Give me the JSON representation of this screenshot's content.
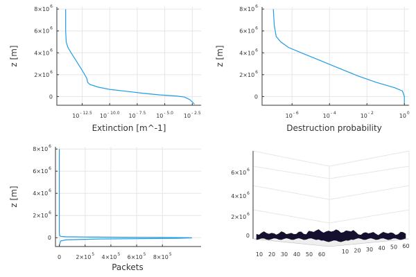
{
  "chart_data": [
    {
      "type": "line",
      "xlabel": "Extinction [m^-1]",
      "ylabel": "z [m]",
      "xscale": "log",
      "x_tick_labels": [
        {
          "base": "10",
          "exp": "- 12.5"
        },
        {
          "base": "10",
          "exp": "- 10.0"
        },
        {
          "base": "10",
          "exp": "- 7.5"
        },
        {
          "base": "10",
          "exp": "- 5.0"
        },
        {
          "base": "10",
          "exp": "- 2.5"
        }
      ],
      "y_tick_labels": [
        {
          "base": "0",
          "exp": ""
        },
        {
          "base": "2×10",
          "exp": "6"
        },
        {
          "base": "4×10",
          "exp": "6"
        },
        {
          "base": "6×10",
          "exp": "6"
        },
        {
          "base": "8×10",
          "exp": "6"
        }
      ],
      "ylim": [
        -800000,
        8200000
      ],
      "grid": true,
      "series": [
        {
          "color": "#1e9be6",
          "x_log10": [
            -14.0,
            -14.0,
            -13.95,
            -13.8,
            -13.5,
            -13.0,
            -12.5,
            -12.1,
            -12.0,
            -11.8,
            -11.0,
            -10.0,
            -8.5,
            -7.0,
            -5.5,
            -4.0,
            -3.2,
            -2.7,
            -2.3
          ],
          "y": [
            8000000,
            6000000,
            5000000,
            4500000,
            4000000,
            3200000,
            2400000,
            1700000,
            1300000,
            1100000,
            850000,
            650000,
            480000,
            300000,
            150000,
            50000,
            -50000,
            -300000,
            -700000
          ]
        }
      ]
    },
    {
      "type": "line",
      "xlabel": "Destruction probability",
      "ylabel": "z [m]",
      "xscale": "log",
      "x_tick_labels": [
        {
          "base": "10",
          "exp": "- 6"
        },
        {
          "base": "10",
          "exp": "- 4"
        },
        {
          "base": "10",
          "exp": "- 2"
        },
        {
          "base": "10",
          "exp": "0"
        }
      ],
      "y_tick_labels": [
        {
          "base": "0",
          "exp": ""
        },
        {
          "base": "2×10",
          "exp": "6"
        },
        {
          "base": "4×10",
          "exp": "6"
        },
        {
          "base": "6×10",
          "exp": "6"
        },
        {
          "base": "8×10",
          "exp": "6"
        }
      ],
      "ylim": [
        -800000,
        8200000
      ],
      "grid": true,
      "series": [
        {
          "color": "#1e9be6",
          "x_log10": [
            -7.0,
            -6.95,
            -6.85,
            -6.6,
            -6.2,
            -5.5,
            -4.5,
            -3.5,
            -2.5,
            -1.5,
            -0.5,
            -0.1,
            0.0,
            0.0
          ],
          "y": [
            8000000,
            6500000,
            5500000,
            5000000,
            4500000,
            4000000,
            3300000,
            2600000,
            1900000,
            1300000,
            800000,
            500000,
            0,
            -700000
          ]
        }
      ]
    },
    {
      "type": "line",
      "xlabel": "Packets",
      "ylabel": "z [m]",
      "x_tick_labels": [
        {
          "base": "0",
          "exp": ""
        },
        {
          "base": "2×10",
          "exp": "5"
        },
        {
          "base": "4×10",
          "exp": "5"
        },
        {
          "base": "6×10",
          "exp": "5"
        },
        {
          "base": "8×10",
          "exp": "5"
        }
      ],
      "y_tick_labels": [
        {
          "base": "0",
          "exp": ""
        },
        {
          "base": "2×10",
          "exp": "6"
        },
        {
          "base": "4×10",
          "exp": "6"
        },
        {
          "base": "6×10",
          "exp": "6"
        },
        {
          "base": "8×10",
          "exp": "6"
        }
      ],
      "xlim": [
        -30000,
        1100000
      ],
      "ylim": [
        -800000,
        8200000
      ],
      "grid": true,
      "series": [
        {
          "color": "#1e9be6",
          "x": [
            0,
            0,
            0,
            2000,
            10000,
            50000,
            200000,
            500000,
            800000,
            1000000,
            1030000,
            900000,
            300000,
            50000,
            10000,
            0
          ],
          "y": [
            8000000,
            2000000,
            500000,
            200000,
            120000,
            80000,
            60000,
            40000,
            20000,
            0,
            -20000,
            -60000,
            -120000,
            -200000,
            -300000,
            -700000
          ]
        }
      ]
    },
    {
      "type": "surface",
      "x_tick_labels": [
        "10",
        "20",
        "30",
        "40",
        "50",
        "60"
      ],
      "y_tick_labels": [
        "10",
        "20",
        "30",
        "40",
        "50",
        "60"
      ],
      "z_tick_labels": [
        {
          "base": "0",
          "exp": ""
        },
        {
          "base": "2×10",
          "exp": "6"
        },
        {
          "base": "4×10",
          "exp": "6"
        },
        {
          "base": "6×10",
          "exp": "6"
        }
      ],
      "surface_color": "#14102e",
      "grid": true
    }
  ]
}
